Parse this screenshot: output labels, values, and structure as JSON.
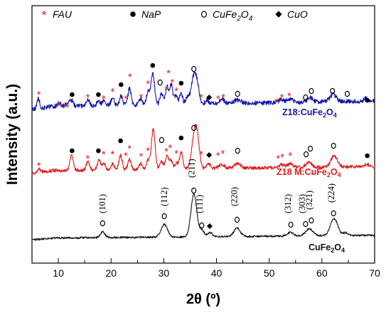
{
  "chart_data": {
    "type": "line",
    "xlabel": "2θ (º)",
    "ylabel": "Intensity (a.u.)",
    "xlim": [
      5,
      70
    ],
    "x_ticks": [
      10,
      20,
      30,
      40,
      50,
      60,
      70
    ],
    "y_ticks_shown": false,
    "legend": {
      "placement": "top",
      "entries": [
        {
          "symbol": "*",
          "label": "FAU",
          "color": "#e02020"
        },
        {
          "symbol": "●",
          "label": "NaP",
          "color": "#000000"
        },
        {
          "symbol": "o",
          "label": "CuFe2O4",
          "label_main": "CuFe",
          "label_sub1": "2",
          "label_mid": "O",
          "label_sub2": "4",
          "color": "#000000"
        },
        {
          "symbol": "◆",
          "label": "CuO",
          "color": "#000000"
        }
      ]
    },
    "series": [
      {
        "name": "Z18:CuFe2O4",
        "label_parts": {
          "a": "Z18:CuFe",
          "s1": "2",
          "b": "O",
          "s2": "4"
        },
        "color": "#1515a8",
        "baseline": 150,
        "noise": 3.2,
        "baseline_tilt": -8,
        "peaks": [
          [
            6.2,
            14,
            0.25
          ],
          [
            10.2,
            5,
            0.3
          ],
          [
            11.8,
            5,
            0.3
          ],
          [
            12.5,
            8,
            0.3
          ],
          [
            15.6,
            9,
            0.3
          ],
          [
            17.6,
            7,
            0.3
          ],
          [
            18.6,
            6,
            0.3
          ],
          [
            20.3,
            10,
            0.3
          ],
          [
            21.9,
            13,
            0.3
          ],
          [
            23.5,
            23,
            0.3
          ],
          [
            25.6,
            9,
            0.3
          ],
          [
            27.0,
            18,
            0.3
          ],
          [
            27.9,
            44,
            0.35
          ],
          [
            29.6,
            16,
            0.3
          ],
          [
            30.6,
            24,
            0.3
          ],
          [
            31.4,
            28,
            0.3
          ],
          [
            32.3,
            11,
            0.3
          ],
          [
            33.3,
            14,
            0.3
          ],
          [
            34.5,
            10,
            0.3
          ],
          [
            35.6,
            34,
            0.45
          ],
          [
            36.3,
            26,
            0.4
          ],
          [
            38.2,
            5,
            0.3
          ],
          [
            41.0,
            6,
            0.5
          ],
          [
            44.0,
            5,
            0.6
          ],
          [
            52.3,
            4,
            0.5
          ],
          [
            54.0,
            5,
            0.5
          ],
          [
            57.8,
            6,
            0.5
          ],
          [
            62.1,
            10,
            0.6
          ],
          [
            68.4,
            4,
            0.4
          ]
        ],
        "markers": [
          {
            "t": "*",
            "x": 6.3,
            "y": 132
          },
          {
            "t": "*",
            "x": 10.3,
            "y": 148
          },
          {
            "t": "*",
            "x": 11.7,
            "y": 150
          },
          {
            "t": "●",
            "x": 12.6,
            "y": 133
          },
          {
            "t": "*",
            "x": 15.6,
            "y": 136
          },
          {
            "t": "●",
            "x": 17.6,
            "y": 133
          },
          {
            "t": "*",
            "x": 18.6,
            "y": 138
          },
          {
            "t": "*",
            "x": 20.3,
            "y": 128
          },
          {
            "t": "●",
            "x": 21.9,
            "y": 119
          },
          {
            "t": "*",
            "x": 22.8,
            "y": 138
          },
          {
            "t": "*",
            "x": 23.6,
            "y": 107
          },
          {
            "t": "*",
            "x": 25.7,
            "y": 136
          },
          {
            "t": "*",
            "x": 27.0,
            "y": 117
          },
          {
            "t": "●",
            "x": 27.9,
            "y": 92
          },
          {
            "t": "o",
            "x": 29.3,
            "y": 116
          },
          {
            "t": "*",
            "x": 30.5,
            "y": 125
          },
          {
            "t": "*",
            "x": 30.9,
            "y": 102
          },
          {
            "t": "*",
            "x": 31.6,
            "y": 115
          },
          {
            "t": "*",
            "x": 32.4,
            "y": 127
          },
          {
            "t": "●",
            "x": 33.3,
            "y": 117
          },
          {
            "t": "o",
            "x": 35.7,
            "y": 97
          },
          {
            "t": "*",
            "x": 37.1,
            "y": 136
          },
          {
            "t": "◆",
            "x": 38.6,
            "y": 137
          },
          {
            "t": "*",
            "x": 40.3,
            "y": 138
          },
          {
            "t": "*",
            "x": 41.3,
            "y": 136
          },
          {
            "t": "o",
            "x": 44.0,
            "y": 132
          },
          {
            "t": "*",
            "x": 51.5,
            "y": 142
          },
          {
            "t": "*",
            "x": 52.4,
            "y": 136
          },
          {
            "t": "*",
            "x": 53.8,
            "y": 134
          },
          {
            "t": "o",
            "x": 56.9,
            "y": 137
          },
          {
            "t": "o",
            "x": 58.0,
            "y": 128
          },
          {
            "t": "o",
            "x": 62.0,
            "y": 128
          },
          {
            "t": "o",
            "x": 64.8,
            "y": 132
          },
          {
            "t": "●",
            "x": 68.6,
            "y": 141
          }
        ]
      },
      {
        "name": "Z18 M:CuFe2O4",
        "label_parts": {
          "a": "Z18 M:CuFe",
          "s1": "2",
          "b": "O",
          "s2": "4"
        },
        "color": "#e01818",
        "baseline": 240,
        "noise": 2.4,
        "baseline_tilt": -6,
        "peaks": [
          [
            6.3,
            5,
            0.3
          ],
          [
            12.5,
            22,
            0.3
          ],
          [
            15.6,
            12,
            0.3
          ],
          [
            17.7,
            14,
            0.3
          ],
          [
            18.6,
            9,
            0.3
          ],
          [
            20.3,
            8,
            0.3
          ],
          [
            21.8,
            20,
            0.3
          ],
          [
            23.5,
            14,
            0.3
          ],
          [
            25.6,
            8,
            0.3
          ],
          [
            27.0,
            12,
            0.3
          ],
          [
            28.0,
            56,
            0.35
          ],
          [
            29.6,
            10,
            0.3
          ],
          [
            30.6,
            18,
            0.3
          ],
          [
            31.4,
            12,
            0.3
          ],
          [
            32.4,
            8,
            0.3
          ],
          [
            33.3,
            24,
            0.3
          ],
          [
            35.8,
            46,
            0.5
          ],
          [
            36.4,
            30,
            0.4
          ],
          [
            38.5,
            6,
            0.4
          ],
          [
            41.0,
            5,
            0.5
          ],
          [
            44.0,
            6,
            0.6
          ],
          [
            52.5,
            4,
            0.5
          ],
          [
            54.0,
            5,
            0.5
          ],
          [
            57.5,
            7,
            0.5
          ],
          [
            62.3,
            16,
            0.6
          ],
          [
            68.5,
            3,
            0.4
          ]
        ],
        "markers": [
          {
            "t": "*",
            "x": 6.3,
            "y": 232
          },
          {
            "t": "●",
            "x": 12.6,
            "y": 212
          },
          {
            "t": "*",
            "x": 15.6,
            "y": 222
          },
          {
            "t": "●",
            "x": 17.6,
            "y": 212
          },
          {
            "t": "*",
            "x": 18.6,
            "y": 216
          },
          {
            "t": "*",
            "x": 20.3,
            "y": 216
          },
          {
            "t": "●",
            "x": 21.8,
            "y": 198
          },
          {
            "t": "*",
            "x": 22.8,
            "y": 218
          },
          {
            "t": "*",
            "x": 23.5,
            "y": 208
          },
          {
            "t": "*",
            "x": 25.7,
            "y": 219
          },
          {
            "t": "*",
            "x": 27.0,
            "y": 211
          },
          {
            "t": "o",
            "x": 29.6,
            "y": 197
          },
          {
            "t": "*",
            "x": 30.5,
            "y": 212
          },
          {
            "t": "*",
            "x": 31.2,
            "y": 207
          },
          {
            "t": "*",
            "x": 32.4,
            "y": 215
          },
          {
            "t": "●",
            "x": 33.3,
            "y": 194
          },
          {
            "t": "o",
            "x": 35.7,
            "y": 180
          },
          {
            "t": "*",
            "x": 37.1,
            "y": 216
          },
          {
            "t": "◆",
            "x": 38.6,
            "y": 218
          },
          {
            "t": "*",
            "x": 40.3,
            "y": 218
          },
          {
            "t": "*",
            "x": 41.2,
            "y": 215
          },
          {
            "t": "o",
            "x": 44.0,
            "y": 212
          },
          {
            "t": "*",
            "x": 51.7,
            "y": 222
          },
          {
            "t": "*",
            "x": 52.5,
            "y": 220
          },
          {
            "t": "*",
            "x": 54.0,
            "y": 218
          },
          {
            "t": "o",
            "x": 57.0,
            "y": 217
          },
          {
            "t": "o",
            "x": 57.8,
            "y": 209
          },
          {
            "t": "o",
            "x": 62.2,
            "y": 205
          },
          {
            "t": "●",
            "x": 68.6,
            "y": 219
          }
        ]
      },
      {
        "name": "CuFe2O4",
        "label_parts": {
          "a": "CuFe",
          "s1": "2",
          "b": "O",
          "s2": "4"
        },
        "color": "#111111",
        "baseline": 335,
        "noise": 1.3,
        "baseline_tilt": -4,
        "peaks": [
          [
            18.4,
            8,
            0.45
          ],
          [
            30.1,
            18,
            0.6
          ],
          [
            35.7,
            60,
            0.55
          ],
          [
            37.2,
            9,
            0.5
          ],
          [
            38.8,
            6,
            0.4
          ],
          [
            43.9,
            12,
            0.6
          ],
          [
            54.0,
            5,
            0.6
          ],
          [
            57.6,
            10,
            0.7
          ],
          [
            62.3,
            24,
            0.7
          ],
          [
            64.5,
            4,
            0.5
          ]
        ],
        "markers": [
          {
            "t": "o",
            "x": 18.4,
            "y": 314
          },
          {
            "t": "o",
            "x": 30.1,
            "y": 304
          },
          {
            "t": "o",
            "x": 35.7,
            "y": 268
          },
          {
            "t": "o",
            "x": 37.2,
            "y": 317
          },
          {
            "t": "◆",
            "x": 38.7,
            "y": 318
          },
          {
            "t": "o",
            "x": 43.9,
            "y": 309
          },
          {
            "t": "o",
            "x": 54.1,
            "y": 316
          },
          {
            "t": "o",
            "x": 56.9,
            "y": 315
          },
          {
            "t": "o",
            "x": 58.0,
            "y": 310
          },
          {
            "t": "o",
            "x": 62.2,
            "y": 300
          }
        ],
        "hkl": [
          {
            "label": "(101)",
            "x": 18.9,
            "y": 300,
            "rot": -90
          },
          {
            "label": "(112)",
            "x": 30.6,
            "y": 290,
            "rot": -90
          },
          {
            "label": "(211)",
            "x": 35.8,
            "y": 250,
            "rot": -90
          },
          {
            "label": "(111)",
            "x": 37.3,
            "y": 300,
            "rot": -90
          },
          {
            "label": "(220)",
            "x": 43.9,
            "y": 290,
            "rot": -90
          },
          {
            "label": "(312)",
            "x": 54.1,
            "y": 300,
            "rot": -90
          },
          {
            "label": "(303)",
            "x": 56.8,
            "y": 300,
            "rot": -90
          },
          {
            "label": "(321)",
            "x": 58.1,
            "y": 295,
            "rot": -90
          },
          {
            "label": "(224)",
            "x": 62.3,
            "y": 285,
            "rot": -90
          }
        ]
      }
    ]
  }
}
